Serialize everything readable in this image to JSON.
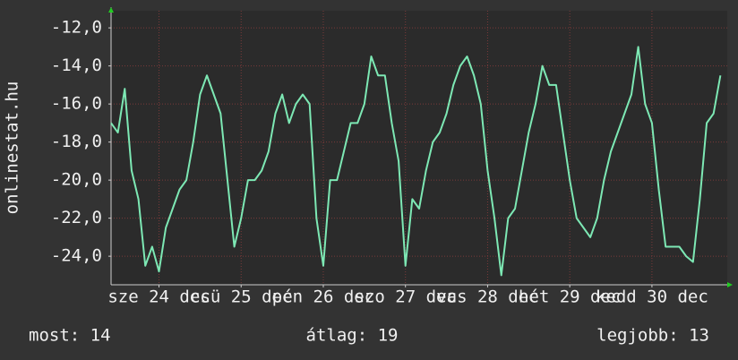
{
  "chart_data": {
    "type": "line",
    "y_axis_label": "onlinestat.hu",
    "x": [
      0,
      2,
      4,
      6,
      8,
      10,
      12,
      14,
      16,
      18,
      20,
      22,
      24,
      26,
      28,
      30,
      32,
      34,
      36,
      38,
      40,
      42,
      44,
      46,
      48,
      50,
      52,
      54,
      56,
      58,
      60,
      62,
      64,
      66,
      68,
      70,
      72,
      74,
      76,
      78,
      80,
      82,
      84,
      86,
      88,
      90,
      92,
      94,
      96,
      98,
      100,
      102,
      104,
      106,
      108,
      110,
      112,
      114,
      116,
      118,
      120,
      122,
      124,
      126,
      128,
      130,
      132,
      134,
      136,
      138,
      140,
      142,
      144,
      146,
      148,
      150,
      152,
      154,
      156,
      158,
      160,
      162,
      164,
      166,
      168,
      170,
      172,
      174,
      176,
      178
    ],
    "series": [
      {
        "color": "#7de8b4",
        "values": [
          -17,
          -17.5,
          -15.2,
          -19.5,
          -21,
          -24.5,
          -23.5,
          -24.8,
          -22.5,
          -21.5,
          -20.5,
          -20,
          -18,
          -15.5,
          -14.5,
          -15.5,
          -16.5,
          -20,
          -23.5,
          -22,
          -20,
          -20,
          -19.5,
          -18.5,
          -16.5,
          -15.5,
          -17,
          -16,
          -15.5,
          -16,
          -22,
          -24.5,
          -20,
          -20,
          -18.5,
          -17,
          -17,
          -16,
          -13.5,
          -14.5,
          -14.5,
          -17,
          -19,
          -24.5,
          -21,
          -21.5,
          -19.5,
          -18,
          -17.5,
          -16.5,
          -15,
          -14,
          -13.5,
          -14.5,
          -16,
          -19.5,
          -22,
          -25,
          -22,
          -21.5,
          -19.5,
          -17.5,
          -16,
          -14,
          -15,
          -15,
          -17.5,
          -20,
          -22,
          -22.5,
          -23,
          -22,
          -20,
          -18.5,
          -17.5,
          -16.5,
          -15.5,
          -13,
          -16,
          -17,
          -20.5,
          -23.5,
          -23.5,
          -23.5,
          -24,
          -24.3,
          -21,
          -17,
          -16.5,
          -14.5
        ]
      }
    ],
    "xlim": [
      0,
      180
    ],
    "xticks": [
      {
        "value": 14,
        "label": "sze 24 dec"
      },
      {
        "value": 38,
        "label": "csü 25 dec"
      },
      {
        "value": 62,
        "label": "pén 26 dec"
      },
      {
        "value": 86,
        "label": "szo 27 dec"
      },
      {
        "value": 110,
        "label": "vas 28 dec"
      },
      {
        "value": 134,
        "label": "hét 29 dec"
      },
      {
        "value": 158,
        "label": "kedd 30 dec"
      }
    ],
    "ylim": [
      -25.5,
      -11.1
    ],
    "yticks": [
      {
        "value": -24,
        "label": "-24,0"
      },
      {
        "value": -22,
        "label": "-22,0"
      },
      {
        "value": -20,
        "label": "-20,0"
      },
      {
        "value": -18,
        "label": "-18,0"
      },
      {
        "value": -16,
        "label": "-16,0"
      },
      {
        "value": -14,
        "label": "-14,0"
      },
      {
        "value": -12,
        "label": "-12,0"
      }
    ],
    "grid": true,
    "footer": [
      "most: 14",
      "átlag: 19",
      "legjobb: 13"
    ]
  }
}
